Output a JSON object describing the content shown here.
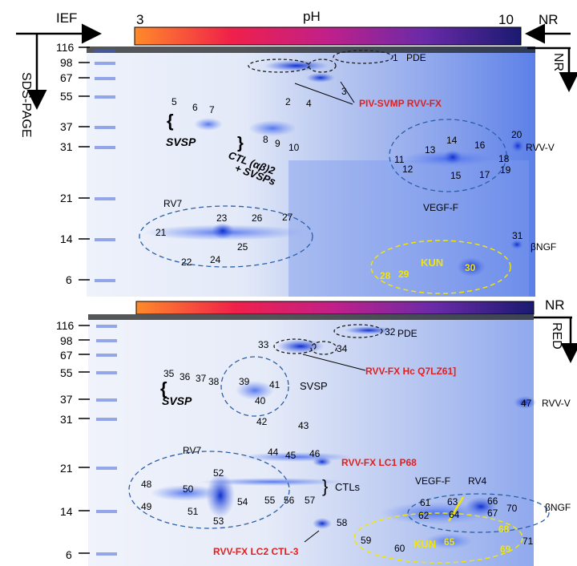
{
  "axes": {
    "ief": "IEF",
    "sds_page": "SDS-PAGE",
    "ph_label": "pH",
    "ph_min": "3",
    "ph_max": "10",
    "nr_top": "NR",
    "nr_right": "NR",
    "nr_bottom_top": "NR",
    "red": "RED"
  },
  "colors": {
    "gel_blue": "#3b62e0",
    "spot": "#1f45d8",
    "red_label": "#e02020",
    "yellow_label": "#f2e600",
    "dashed_circle": "#2a5fa8"
  },
  "top_panel": {
    "mw_markers": [
      "116",
      "98",
      "67",
      "55",
      "37",
      "31",
      "21",
      "14",
      "6"
    ],
    "spots": [
      "1",
      "2",
      "3",
      "4",
      "5",
      "6",
      "7",
      "8",
      "9",
      "10",
      "11",
      "12",
      "13",
      "14",
      "15",
      "16",
      "17",
      "18",
      "19",
      "20",
      "21",
      "22",
      "23",
      "24",
      "25",
      "26",
      "27",
      "28",
      "29",
      "30",
      "31"
    ],
    "labels": {
      "pde": "PDE",
      "piv": "PIV-SVMP RVV-FX",
      "svsp": "SVSP",
      "ctl1": "CTL (αβ)2",
      "ctl2": "+ SVSPs",
      "rvv_v": "RVV-V",
      "rv7": "RV7",
      "vegf": "VEGF-F",
      "bngf": "βNGF",
      "kun": "KUN"
    }
  },
  "bottom_panel": {
    "mw_markers": [
      "116",
      "98",
      "67",
      "55",
      "37",
      "31",
      "21",
      "14",
      "6"
    ],
    "spots": [
      "32",
      "33",
      "34",
      "35",
      "36",
      "37",
      "38",
      "39",
      "40",
      "41",
      "42",
      "43",
      "44",
      "45",
      "46",
      "47",
      "48",
      "49",
      "50",
      "51",
      "52",
      "53",
      "54",
      "55",
      "56",
      "57",
      "58",
      "59",
      "60",
      "61",
      "62",
      "63",
      "64",
      "65",
      "66",
      "67",
      "68",
      "69",
      "70",
      "71"
    ],
    "labels": {
      "pde": "PDE",
      "rvvfx_hc": "RVV-FX Hc Q7LZ61]",
      "svsp_left": "SVSP",
      "svsp_right": "SVSP",
      "rvv_v": "RVV-V",
      "lc1": "RVV-FX LC1 P68",
      "ctls": "CTLs",
      "rv7": "RV7",
      "vegf": "VEGF-F",
      "rv4": "RV4",
      "bngf": "βNGF",
      "lc2": "RVV-FX LC2 CTL-3",
      "kun": "KUN"
    }
  }
}
